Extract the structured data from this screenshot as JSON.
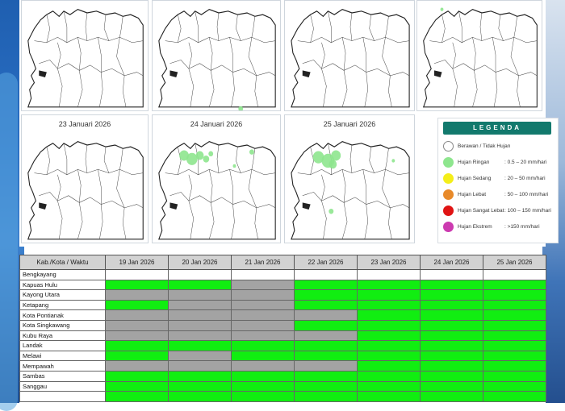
{
  "maps": [
    {
      "date": "",
      "blobs": []
    },
    {
      "date": "",
      "blobs": [
        {
          "cx": 110,
          "cy": 122,
          "r": 3
        }
      ]
    },
    {
      "date": "",
      "blobs": []
    },
    {
      "date": "",
      "blobs": [
        {
          "cx": 30,
          "cy": 8,
          "r": 2
        }
      ]
    },
    {
      "date": "23 Januari 2026",
      "blobs": []
    },
    {
      "date": "24 Januari 2026",
      "blobs": [
        {
          "cx": 38,
          "cy": 24,
          "r": 6
        },
        {
          "cx": 48,
          "cy": 28,
          "r": 7
        },
        {
          "cx": 58,
          "cy": 24,
          "r": 5
        },
        {
          "cx": 66,
          "cy": 28,
          "r": 4
        },
        {
          "cx": 72,
          "cy": 22,
          "r": 3
        },
        {
          "cx": 124,
          "cy": 20,
          "r": 3
        },
        {
          "cx": 102,
          "cy": 36,
          "r": 2
        }
      ]
    },
    {
      "date": "25 Januari 2026",
      "blobs": [
        {
          "cx": 40,
          "cy": 26,
          "r": 7
        },
        {
          "cx": 52,
          "cy": 30,
          "r": 8
        },
        {
          "cx": 62,
          "cy": 24,
          "r": 6
        },
        {
          "cx": 58,
          "cy": 34,
          "r": 5
        },
        {
          "cx": 134,
          "cy": 30,
          "r": 2
        },
        {
          "cx": 56,
          "cy": 88,
          "r": 3
        }
      ]
    }
  ],
  "legend": {
    "title": "LEGENDA",
    "items": [
      {
        "label": "Berawan / Tidak Hujan",
        "range": "",
        "color": "#ffffff",
        "border": "#888888"
      },
      {
        "label": "Hujan Ringan",
        "range": ": 0.5 – 20 mm/hari",
        "color": "#8ee68e",
        "border": "#8ee68e"
      },
      {
        "label": "Hujan Sedang",
        "range": ": 20 – 50 mm/hari",
        "color": "#f4ee1a",
        "border": "#f4ee1a"
      },
      {
        "label": "Hujan Lebat",
        "range": ": 50 – 100 mm/hari",
        "color": "#e88a2a",
        "border": "#e88a2a"
      },
      {
        "label": "Hujan Sangat Lebat",
        "range": ": 100 – 150 mm/hari",
        "color": "#e01414",
        "border": "#e01414"
      },
      {
        "label": "Hujan Ekstrem",
        "range": ": >150 mm/hari",
        "color": "#cc3bb0",
        "border": "#cc3bb0"
      }
    ]
  },
  "table": {
    "header": [
      "Kab./Kota / Waktu",
      "19 Jan 2026",
      "20 Jan 2026",
      "21 Jan 2026",
      "22 Jan 2026",
      "23 Jan 2026",
      "24 Jan 2026",
      "25 Jan 2026"
    ],
    "rows": [
      {
        "name": "Bengkayang",
        "cells": [
          "white",
          "white",
          "white",
          "white",
          "white",
          "white",
          "white"
        ]
      },
      {
        "name": "Kapuas Hulu",
        "cells": [
          "green",
          "green",
          "gray",
          "green",
          "green",
          "green",
          "green"
        ]
      },
      {
        "name": "Kayong Utara",
        "cells": [
          "gray",
          "gray",
          "gray",
          "green",
          "green",
          "green",
          "green"
        ]
      },
      {
        "name": "Ketapang",
        "cells": [
          "green",
          "gray",
          "gray",
          "green",
          "green",
          "green",
          "green"
        ]
      },
      {
        "name": "Kota Pontianak",
        "cells": [
          "gray",
          "gray",
          "gray",
          "gray",
          "green",
          "green",
          "green"
        ]
      },
      {
        "name": "Kota Singkawang",
        "cells": [
          "gray",
          "gray",
          "gray",
          "green",
          "green",
          "green",
          "green"
        ]
      },
      {
        "name": "Kubu Raya",
        "cells": [
          "gray",
          "gray",
          "gray",
          "gray",
          "green",
          "green",
          "green"
        ]
      },
      {
        "name": "Landak",
        "cells": [
          "green",
          "green",
          "green",
          "green",
          "green",
          "green",
          "green"
        ]
      },
      {
        "name": "Melawi",
        "cells": [
          "green",
          "gray",
          "green",
          "green",
          "green",
          "green",
          "green"
        ]
      },
      {
        "name": "Mempawah",
        "cells": [
          "gray",
          "gray",
          "gray",
          "gray",
          "green",
          "green",
          "green"
        ]
      },
      {
        "name": "Sambas",
        "cells": [
          "green",
          "green",
          "green",
          "green",
          "green",
          "green",
          "green"
        ]
      },
      {
        "name": "Sanggau",
        "cells": [
          "green",
          "green",
          "green",
          "green",
          "green",
          "green",
          "green"
        ]
      },
      {
        "name": "",
        "cells": [
          "green",
          "green",
          "green",
          "green",
          "green",
          "green",
          "green"
        ]
      }
    ]
  },
  "colors": {
    "green": "#11ee11",
    "gray": "#a3a3a3",
    "legend_header": "#12796d"
  }
}
